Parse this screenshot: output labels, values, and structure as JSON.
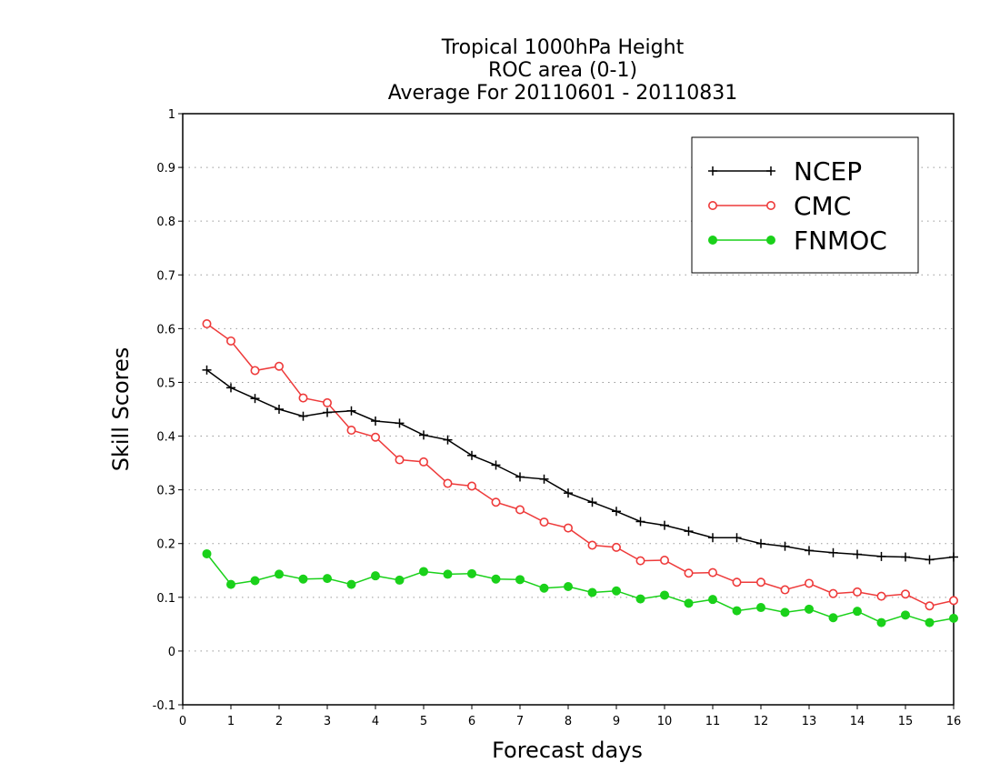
{
  "chart_data": {
    "type": "line",
    "title_lines": [
      "Tropical 1000hPa Height",
      "ROC area (0-1)",
      "Average For 20110601 - 20110831"
    ],
    "xlabel": "Forecast days",
    "ylabel": "Skill Scores",
    "xlim": [
      0,
      16
    ],
    "ylim": [
      -0.1,
      1
    ],
    "xticks": [
      0,
      1,
      2,
      3,
      4,
      5,
      6,
      7,
      8,
      9,
      10,
      11,
      12,
      13,
      14,
      15,
      16
    ],
    "xtick_labels": [
      "0",
      "1",
      "2",
      "3",
      "4",
      "5",
      "6",
      "7",
      "8",
      "9",
      "10",
      "11",
      "12",
      "13",
      "14",
      "15",
      "16"
    ],
    "yticks": [
      -0.1,
      0,
      0.1,
      0.2,
      0.3,
      0.4,
      0.5,
      0.6,
      0.7,
      0.8,
      0.9,
      1
    ],
    "ytick_labels": [
      "-0.1",
      "0",
      "0.1",
      "0.2",
      "0.3",
      "0.4",
      "0.5",
      "0.6",
      "0.7",
      "0.8",
      "0.9",
      "1"
    ],
    "grid": "horizontal dotted",
    "legend_position": "top-right",
    "x": [
      0.5,
      1,
      1.5,
      2,
      2.5,
      3,
      3.5,
      4,
      4.5,
      5,
      5.5,
      6,
      6.5,
      7,
      7.5,
      8,
      8.5,
      9,
      9.5,
      10,
      10.5,
      11,
      11.5,
      12,
      12.5,
      13,
      13.5,
      14,
      14.5,
      15,
      15.5,
      16
    ],
    "series": [
      {
        "name": "NCEP",
        "color": "#000000",
        "marker": "plus",
        "values": [
          0.523,
          0.49,
          0.47,
          0.45,
          0.437,
          0.444,
          0.447,
          0.428,
          0.424,
          0.402,
          0.393,
          0.364,
          0.346,
          0.324,
          0.32,
          0.294,
          0.277,
          0.26,
          0.241,
          0.234,
          0.223,
          0.211,
          0.211,
          0.2,
          0.195,
          0.187,
          0.183,
          0.18,
          0.176,
          0.175,
          0.17,
          0.175
        ]
      },
      {
        "name": "CMC",
        "color": "#ee3a3a",
        "marker": "open-circle",
        "values": [
          0.609,
          0.577,
          0.522,
          0.53,
          0.471,
          0.462,
          0.411,
          0.398,
          0.356,
          0.352,
          0.312,
          0.307,
          0.277,
          0.263,
          0.24,
          0.229,
          0.197,
          0.193,
          0.168,
          0.169,
          0.145,
          0.146,
          0.128,
          0.128,
          0.114,
          0.126,
          0.107,
          0.11,
          0.102,
          0.106,
          0.084,
          0.094
        ]
      },
      {
        "name": "FNMOC",
        "color": "#1ad11a",
        "marker": "filled-circle",
        "values": [
          0.181,
          0.124,
          0.131,
          0.143,
          0.134,
          0.135,
          0.124,
          0.14,
          0.132,
          0.148,
          0.143,
          0.144,
          0.134,
          0.133,
          0.117,
          0.12,
          0.109,
          0.112,
          0.097,
          0.104,
          0.089,
          0.096,
          0.075,
          0.081,
          0.072,
          0.078,
          0.062,
          0.074,
          0.053,
          0.067,
          0.053,
          0.061
        ]
      }
    ]
  }
}
